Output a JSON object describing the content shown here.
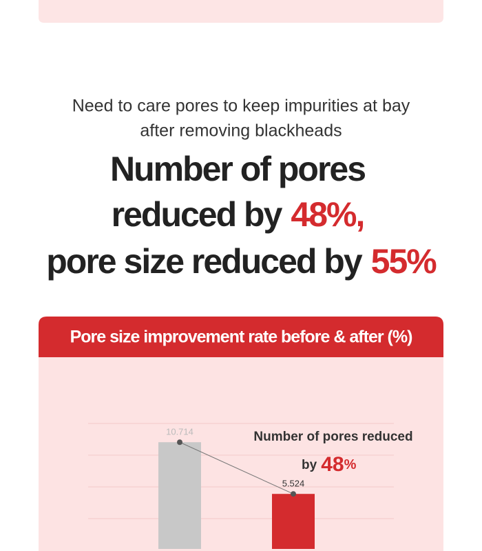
{
  "intro": {
    "lines": [
      "Need to care pores to keep impurities at bay",
      "after removing blackheads"
    ]
  },
  "headline": {
    "line1": "Number of pores",
    "line2": "reduced by",
    "line2_highlight": "48%,",
    "line3": "pore size reduced by",
    "line3_highlight": "55%"
  },
  "chart_data": {
    "type": "bar",
    "title": "Pore size improvement rate before & after (%)",
    "values": [
      10.714,
      5.524
    ],
    "colors": [
      "#c8c8c8",
      "#d42b2e"
    ],
    "ylim": [
      0,
      12.6
    ],
    "annotation": {
      "line1": "Number of pores reduced",
      "by": "by",
      "value": "48",
      "unit": "%"
    }
  }
}
